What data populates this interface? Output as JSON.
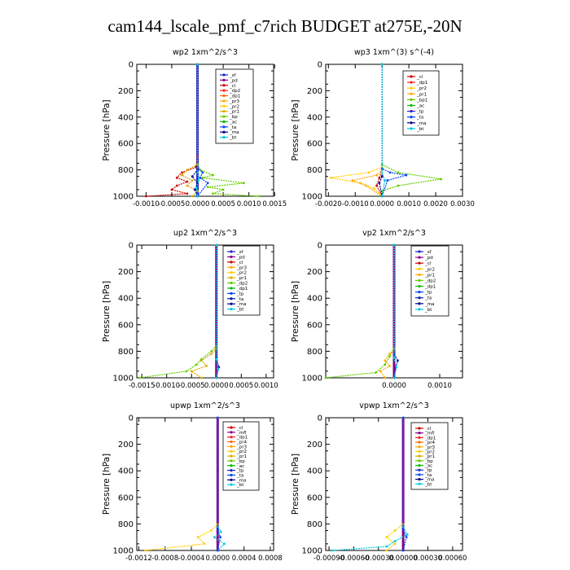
{
  "page_title": "cam144_lscale_pmf_c7rich  BUDGET at275E,-20N",
  "chart_data": [
    {
      "id": "wp2",
      "type": "line",
      "title": "wp2  1xm^2/s^3",
      "ylabel": "Pressure [hPa]",
      "ylim": [
        1000,
        0
      ],
      "yticks": [
        0,
        200,
        400,
        600,
        800,
        1000
      ],
      "xlim": [
        -0.00118,
        0.00148
      ],
      "xticks": [
        -0.001,
        -0.0005,
        0.0,
        0.0005,
        0.001,
        0.0015
      ],
      "xtick_labels": [
        "-0.0010",
        "-0.0005",
        "0.0000",
        "0.0005",
        "0.0010",
        "0.0015"
      ],
      "legend": [
        "_sf",
        "_pd",
        "_cl",
        "_dp2",
        "_dp1",
        "_pr3",
        "_pr2",
        "_pr1",
        "_bp",
        "_ac",
        "_ta",
        "_ma",
        "_bt"
      ],
      "colors": [
        "#2222cc",
        "#880088",
        "#cc0000",
        "#ff2222",
        "#ff6600",
        "#ffaa00",
        "#ffcc00",
        "#ddaa00",
        "#66cc00",
        "#00bb00",
        "#0044ff",
        "#000088",
        "#00ccdd"
      ],
      "series": [
        {
          "name": "_sf",
          "x": [
            0,
            0,
            0,
            0,
            0,
            0
          ],
          "y": [
            0,
            200,
            400,
            600,
            800,
            1000
          ]
        },
        {
          "name": "_cl",
          "x": [
            0,
            0,
            -3e-05,
            -0.0003,
            -0.0004,
            -0.0002,
            -0.0004,
            -0.0005,
            -0.0002,
            -0.001
          ],
          "y": [
            0,
            700,
            780,
            820,
            860,
            890,
            920,
            950,
            980,
            1000
          ]
        },
        {
          "name": "_pr1",
          "x": [
            0,
            0,
            -0.0002,
            -0.0003,
            -0.0001,
            -0.0002,
            0.0,
            -0.0001
          ],
          "y": [
            0,
            760,
            800,
            840,
            880,
            920,
            960,
            1000
          ]
        },
        {
          "name": "_bp",
          "x": [
            0,
            0,
            5e-05,
            0.0003,
            0.0001,
            0.0009,
            0.0002,
            0.0005,
            0.0003,
            0.0012
          ],
          "y": [
            0,
            760,
            800,
            840,
            860,
            900,
            930,
            950,
            980,
            1000
          ]
        },
        {
          "name": "_ta",
          "x": [
            0,
            0,
            0.0001,
            5e-05,
            0.0002,
            0.0
          ],
          "y": [
            0,
            780,
            820,
            860,
            900,
            1000
          ]
        },
        {
          "name": "_ma",
          "x": [
            0,
            0,
            -0.0001,
            0.0,
            -5e-05,
            0.0
          ],
          "y": [
            0,
            800,
            850,
            900,
            950,
            1000
          ]
        },
        {
          "name": "_bt",
          "x": [
            0,
            0,
            2e-05,
            -2e-05,
            0.0
          ],
          "y": [
            0,
            820,
            880,
            940,
            1000
          ]
        }
      ]
    },
    {
      "id": "wp3",
      "type": "line",
      "title": "wp3  1xm^(3) s^(-4)",
      "ylabel": "Pressure [hPa]",
      "ylim": [
        1000,
        0
      ],
      "yticks": [
        0,
        200,
        400,
        600,
        800,
        1000
      ],
      "xlim": [
        -0.0021,
        0.003
      ],
      "xticks": [
        -0.002,
        -0.001,
        0.0,
        0.001,
        0.002,
        0.003
      ],
      "xtick_labels": [
        "-0.0020",
        "-0.0010",
        "0.0000",
        "0.0010",
        "0.0020",
        "0.0030"
      ],
      "legend": [
        "_cl",
        "_dp1",
        "_pr2",
        "_pr1",
        "_bp1",
        "_ac",
        "_tp",
        "_ta",
        "_ma",
        "_bt"
      ],
      "colors": [
        "#cc0000",
        "#ff2222",
        "#ffcc00",
        "#ffaa00",
        "#66cc00",
        "#00bb00",
        "#2222cc",
        "#0044ff",
        "#000088",
        "#00ccdd"
      ],
      "series": [
        {
          "name": "_cl",
          "x": [
            0,
            0,
            -0.0001,
            -0.0002,
            0.0
          ],
          "y": [
            0,
            800,
            860,
            920,
            1000
          ]
        },
        {
          "name": "_pr2",
          "x": [
            0,
            0,
            -0.0005,
            -0.0019,
            -0.0008,
            -0.0003,
            0.0
          ],
          "y": [
            0,
            780,
            820,
            860,
            900,
            940,
            1000
          ]
        },
        {
          "name": "_pr1",
          "x": [
            0,
            0,
            -0.0002,
            -0.0011,
            -0.0006,
            0.0
          ],
          "y": [
            0,
            800,
            840,
            880,
            920,
            1000
          ]
        },
        {
          "name": "_bp1",
          "x": [
            0,
            0,
            0.0006,
            0.0022,
            0.0006,
            0.0,
            0.0
          ],
          "y": [
            0,
            760,
            820,
            870,
            920,
            960,
            1000
          ]
        },
        {
          "name": "_ta",
          "x": [
            0,
            0,
            0.0003,
            0.0009,
            0.0002,
            0.0
          ],
          "y": [
            0,
            790,
            820,
            840,
            880,
            1000
          ]
        },
        {
          "name": "_ma",
          "x": [
            0,
            0,
            -0.0001,
            0.0
          ],
          "y": [
            0,
            850,
            900,
            1000
          ]
        },
        {
          "name": "_bt",
          "x": [
            0,
            0,
            0.0001,
            0.0
          ],
          "y": [
            0,
            820,
            880,
            1000
          ]
        }
      ]
    },
    {
      "id": "up2",
      "type": "line",
      "title": "up2  1xm^2/s^3",
      "ylabel": "Pressure [hPa]",
      "ylim": [
        1000,
        0
      ],
      "yticks": [
        0,
        200,
        400,
        600,
        800,
        1000
      ],
      "xlim": [
        -0.0016,
        0.00115
      ],
      "xticks": [
        -0.0015,
        -0.001,
        -0.0005,
        0.0,
        0.0005,
        0.001
      ],
      "xtick_labels": [
        "-0.0015",
        "-0.0010",
        "-0.0005",
        "0.0000",
        "0.0005",
        "0.0010"
      ],
      "legend": [
        "_sf",
        "_pd",
        "_cl",
        "_pr3",
        "_pr2",
        "_pr1",
        "_dp2",
        "_dp1",
        "_tp",
        "_ta",
        "_ma",
        "_bt"
      ],
      "colors": [
        "#2222cc",
        "#880088",
        "#cc0000",
        "#ffaa00",
        "#ffcc00",
        "#ddaa00",
        "#66cc00",
        "#00bb00",
        "#0044ff",
        "#0022aa",
        "#000088",
        "#00ccdd"
      ],
      "series": [
        {
          "name": "_pd",
          "x": [
            0,
            0,
            0,
            0
          ],
          "y": [
            0,
            400,
            800,
            1000
          ]
        },
        {
          "name": "_pr1",
          "x": [
            0,
            0,
            -0.0001,
            -0.0003,
            -0.0002,
            -0.0005,
            -0.0003
          ],
          "y": [
            0,
            780,
            820,
            870,
            910,
            950,
            1000
          ]
        },
        {
          "name": "_dp2",
          "x": [
            0,
            0,
            -0.0001,
            -0.0003,
            -0.0004,
            -0.0006,
            -0.00155
          ],
          "y": [
            0,
            760,
            800,
            860,
            900,
            950,
            1000
          ]
        },
        {
          "name": "_ta",
          "x": [
            0,
            0,
            5e-05,
            0.0
          ],
          "y": [
            0,
            850,
            920,
            1000
          ]
        },
        {
          "name": "_bt",
          "x": [
            0,
            0,
            3e-05,
            0.0
          ],
          "y": [
            0,
            860,
            930,
            1000
          ]
        }
      ]
    },
    {
      "id": "vp2",
      "type": "line",
      "title": "vp2  1xm^2/s^3",
      "ylabel": "Pressure [hPa]",
      "ylim": [
        1000,
        0
      ],
      "yticks": [
        0,
        200,
        400,
        600,
        800,
        1000
      ],
      "xlim": [
        -0.0015,
        0.0015
      ],
      "xticks": [
        0.0,
        0.001
      ],
      "xtick_labels": [
        "0.0000",
        "0.0010"
      ],
      "legend": [
        "_sf",
        "_pd",
        "_cl",
        "_pr2",
        "_pr1",
        "_dp2",
        "_dp1",
        "_tp",
        "_ta",
        "_ma",
        "_bt"
      ],
      "colors": [
        "#2222cc",
        "#880088",
        "#cc0000",
        "#ffcc00",
        "#ffaa00",
        "#66cc00",
        "#00bb00",
        "#0044ff",
        "#0022aa",
        "#000088",
        "#00ccdd"
      ],
      "series": [
        {
          "name": "_pd",
          "x": [
            0,
            0,
            0,
            0
          ],
          "y": [
            0,
            400,
            800,
            1000
          ]
        },
        {
          "name": "_pr1",
          "x": [
            0,
            0,
            -0.0001,
            -0.0002,
            -0.0001,
            -0.0003,
            -0.0002
          ],
          "y": [
            0,
            780,
            820,
            870,
            910,
            950,
            1000
          ]
        },
        {
          "name": "_dp2",
          "x": [
            0,
            0,
            -0.0001,
            -0.0002,
            -0.0004,
            -0.0015
          ],
          "y": [
            0,
            780,
            840,
            900,
            960,
            1000
          ]
        },
        {
          "name": "_ta",
          "x": [
            0,
            0,
            8e-05,
            4e-05,
            0.0
          ],
          "y": [
            0,
            820,
            870,
            920,
            1000
          ]
        },
        {
          "name": "_bt",
          "x": [
            0,
            0,
            5e-05,
            0.0
          ],
          "y": [
            0,
            850,
            920,
            1000
          ]
        }
      ]
    },
    {
      "id": "upwp",
      "type": "line",
      "title": "upwp  1xm^2/s^3",
      "ylabel": "Pressure [hPa]",
      "ylim": [
        1000,
        0
      ],
      "yticks": [
        0,
        200,
        400,
        600,
        800,
        1000
      ],
      "xlim": [
        -0.00123,
        0.00085
      ],
      "xticks": [
        -0.0012,
        -0.0008,
        -0.0004,
        0.0,
        0.0004,
        0.0008
      ],
      "xtick_labels": [
        "-0.0012",
        "-0.0008",
        "-0.0004",
        "0.0000",
        "0.0004",
        "0.0008"
      ],
      "legend": [
        "_cl",
        "_mfl",
        "_dp1",
        "_pr4",
        "_pr3",
        "_pr2",
        "_pr1",
        "_bp",
        "_ac",
        "_tp",
        "_ta",
        "_ma",
        "_bt"
      ],
      "colors": [
        "#cc0000",
        "#880088",
        "#ff2222",
        "#ff6600",
        "#ffaa00",
        "#ffcc00",
        "#ddaa00",
        "#66cc00",
        "#00bb00",
        "#2222cc",
        "#0044ff",
        "#000088",
        "#00ccdd"
      ],
      "series": [
        {
          "name": "_mfl",
          "x": [
            0,
            0,
            0,
            0
          ],
          "y": [
            0,
            400,
            800,
            1000
          ]
        },
        {
          "name": "_pr2",
          "x": [
            0,
            0,
            -0.0001,
            -0.0003,
            -0.0002,
            -0.0011
          ],
          "y": [
            0,
            800,
            850,
            900,
            950,
            1000
          ]
        },
        {
          "name": "_bt",
          "x": [
            0,
            0,
            5e-05,
            -5e-05,
            0.0001,
            0.0
          ],
          "y": [
            0,
            820,
            860,
            900,
            950,
            1000
          ]
        },
        {
          "name": "_ta",
          "x": [
            0,
            0,
            4e-05,
            0.0
          ],
          "y": [
            0,
            840,
            900,
            1000
          ]
        }
      ]
    },
    {
      "id": "vpwp",
      "type": "line",
      "title": "vpwp  1xm^2/s^3",
      "ylabel": "Pressure [hPa]",
      "ylim": [
        1000,
        0
      ],
      "yticks": [
        0,
        200,
        400,
        600,
        800,
        1000
      ],
      "xlim": [
        -0.00094,
        0.00072
      ],
      "xticks": [
        -0.0009,
        -0.0006,
        -0.0003,
        0.0,
        0.0003,
        0.0006
      ],
      "xtick_labels": [
        "-0.00090",
        "-0.00060",
        "-0.00030",
        "0.00000",
        "0.00030",
        "0.00060"
      ],
      "legend": [
        "_cl",
        "_mfl",
        "_dp1",
        "_pr4",
        "_pr3",
        "_pr2",
        "_pr1",
        "_bp",
        "_ac",
        "_tp",
        "_ta",
        "_ma",
        "_bt"
      ],
      "colors": [
        "#cc0000",
        "#880088",
        "#ff2222",
        "#ff6600",
        "#ffaa00",
        "#ffcc00",
        "#ddaa00",
        "#66cc00",
        "#00bb00",
        "#2222cc",
        "#0044ff",
        "#000088",
        "#00ccdd"
      ],
      "series": [
        {
          "name": "_mfl",
          "x": [
            0,
            0,
            0,
            0
          ],
          "y": [
            0,
            400,
            800,
            1000
          ]
        },
        {
          "name": "_pr2",
          "x": [
            0,
            0,
            -0.0001,
            -0.0002,
            -0.0001,
            -0.0002
          ],
          "y": [
            0,
            800,
            850,
            900,
            950,
            1000
          ]
        },
        {
          "name": "_bt",
          "x": [
            0,
            0,
            5e-05,
            -0.0001,
            -0.0002,
            -0.00085
          ],
          "y": [
            0,
            820,
            880,
            930,
            970,
            1000
          ]
        },
        {
          "name": "_ta",
          "x": [
            0,
            0,
            4e-05,
            0.0
          ],
          "y": [
            0,
            840,
            900,
            1000
          ]
        }
      ]
    }
  ]
}
